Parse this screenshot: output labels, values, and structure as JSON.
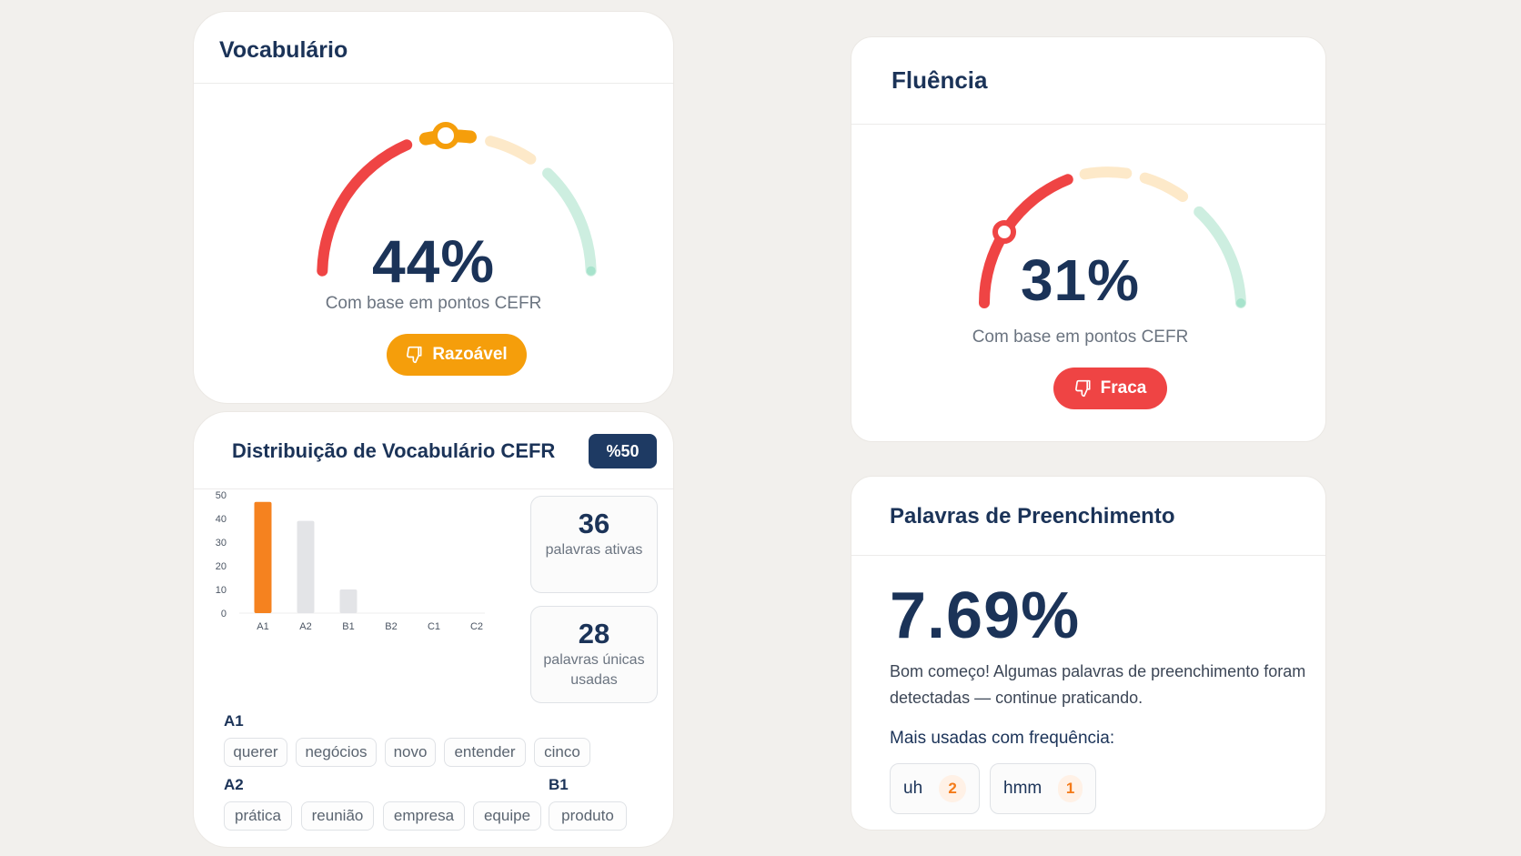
{
  "vocabulary": {
    "title": "Vocabulário",
    "percent": "44%",
    "percent_value": 44,
    "caption": "Com base em pontos CEFR",
    "rating_label": "Razoável",
    "rating_icon": "thumbs-down-icon",
    "rating_color": "#f59e0b"
  },
  "fluency": {
    "title": "Fluência",
    "percent": "31%",
    "percent_value": 31,
    "caption": "Com base em pontos CEFR",
    "rating_label": "Fraca",
    "rating_icon": "thumbs-down-icon",
    "rating_color": "#ef4444"
  },
  "cefr": {
    "title": "Distribuição de Vocabulário CEFR",
    "badge": "%50",
    "active_words_count": "36",
    "active_words_label": "palavras ativas",
    "unique_words_count": "28",
    "unique_words_label": "palavras únicas usadas",
    "levels": [
      {
        "level": "A1",
        "words": [
          "querer",
          "negócios",
          "novo",
          "entender",
          "cinco"
        ]
      },
      {
        "level": "A2",
        "words": [
          "prática",
          "reunião",
          "empresa",
          "equipe"
        ]
      },
      {
        "level": "B1",
        "words": [
          "produto"
        ]
      }
    ]
  },
  "chart_data": {
    "type": "bar",
    "categories": [
      "A1",
      "A2",
      "B1",
      "B2",
      "C1",
      "C2"
    ],
    "values": [
      47,
      39,
      10,
      0,
      0,
      0
    ],
    "yticks": [
      0,
      10,
      20,
      30,
      40,
      50
    ],
    "ylim": [
      0,
      50
    ],
    "highlight_color": "#f5821f",
    "bar_color": "#e3e4e7"
  },
  "fillers": {
    "title": "Palavras de Preenchimento",
    "percent": "7.69%",
    "description": "Bom começo! Algumas palavras de preenchimento foram detectadas — continue praticando.",
    "most_used_label": "Mais usadas com frequência:",
    "items": [
      {
        "word": "uh",
        "count": "2"
      },
      {
        "word": "hmm",
        "count": "1"
      }
    ]
  },
  "colors": {
    "gauge_red": "#ef4444",
    "gauge_orange": "#f59e0b",
    "gauge_peach": "#fde9c9",
    "gauge_green": "#cdeee0",
    "navy": "#1b3358"
  }
}
